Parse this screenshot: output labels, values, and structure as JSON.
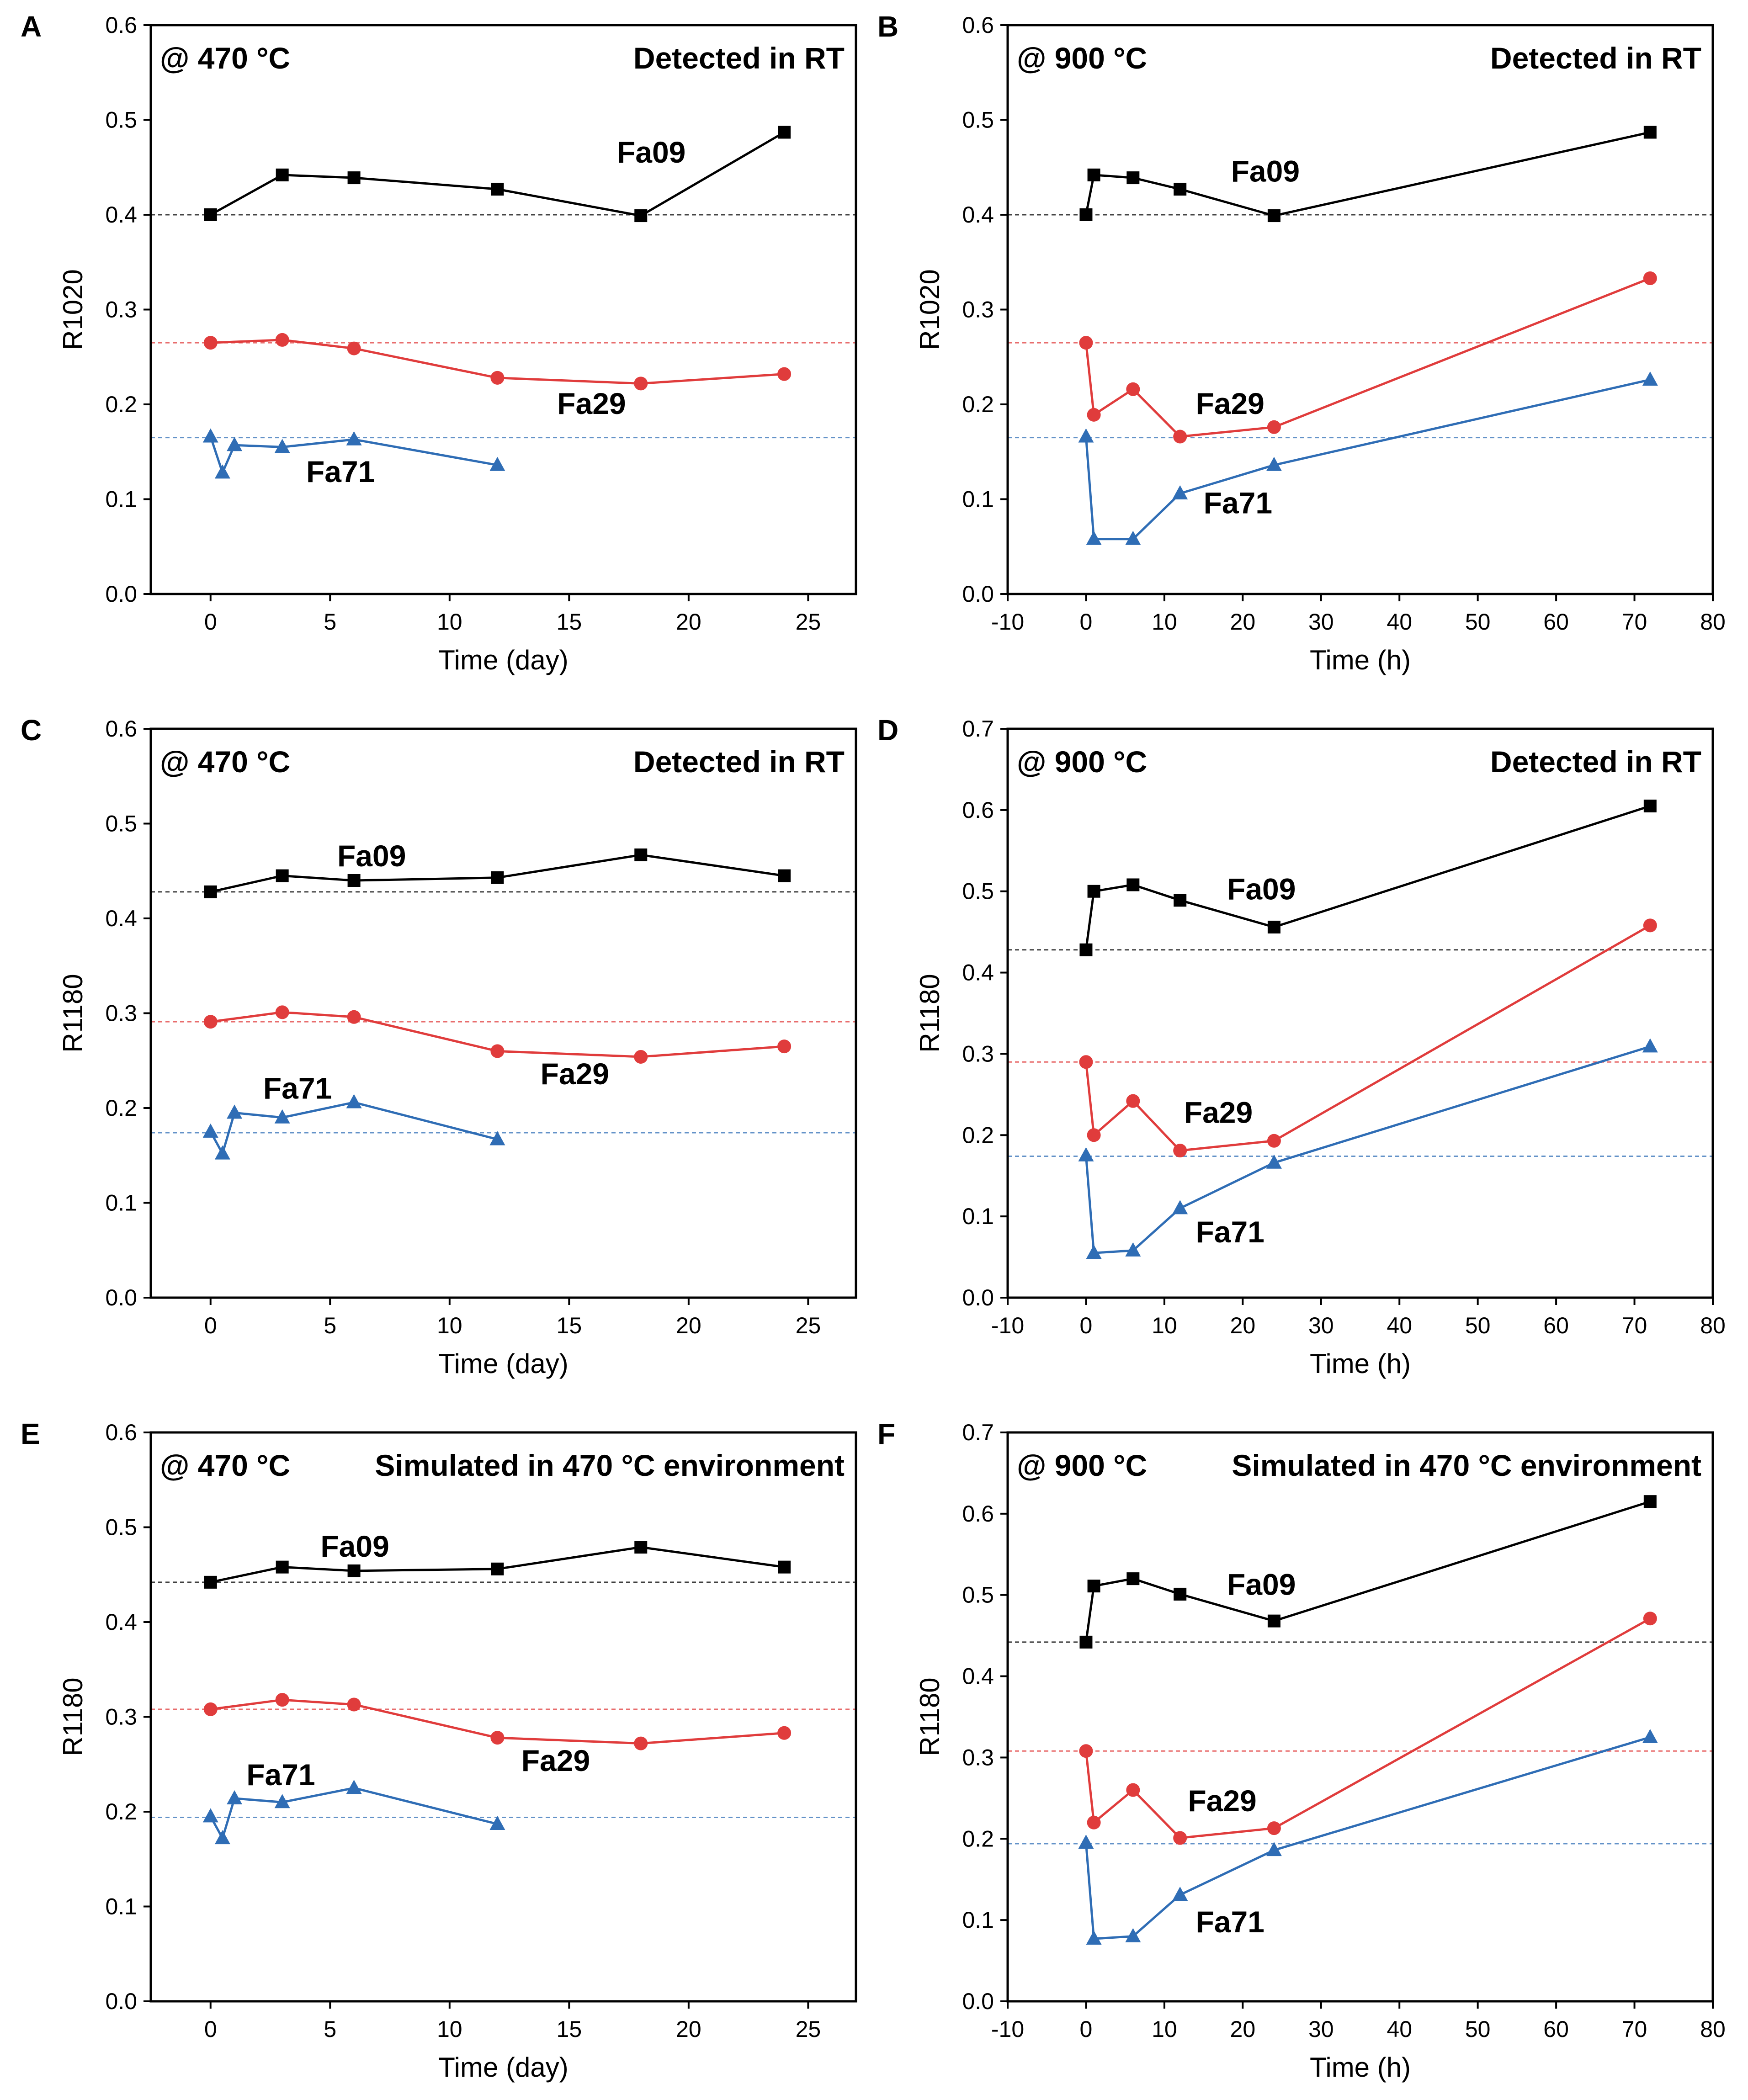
{
  "colors": {
    "black": "#000000",
    "red": "#e03c3c",
    "blue": "#2f6db5"
  },
  "chart_data": [
    {
      "id": "A",
      "type": "line",
      "letter": "A",
      "annotation_left": "@ 470 °C",
      "annotation_right": "Detected in RT",
      "xlabel": "Time (day)",
      "ylabel": "R1020",
      "xlim": [
        -2.5,
        27
      ],
      "ylim": [
        0,
        0.6
      ],
      "xticks": [
        0,
        5,
        10,
        15,
        20,
        25
      ],
      "xtick_labels": [
        "0",
        "5",
        "10",
        "15",
        "20",
        "25"
      ],
      "yticks": [
        0,
        0.1,
        0.2,
        0.3,
        0.4,
        0.5,
        0.6
      ],
      "ytick_labels": [
        "0.0",
        "0.1",
        "0.2",
        "0.3",
        "0.4",
        "0.5",
        "0.6"
      ],
      "series": [
        {
          "name": "Fa09",
          "color": "#000000",
          "marker": "square",
          "reference": 0.4,
          "x": [
            0,
            3,
            6,
            12,
            18,
            24
          ],
          "y": [
            0.4,
            0.442,
            0.439,
            0.427,
            0.399,
            0.487
          ],
          "label_at": [
            17.0,
            0.455
          ]
        },
        {
          "name": "Fa29",
          "color": "#e03c3c",
          "marker": "circle",
          "reference": 0.265,
          "x": [
            0,
            3,
            6,
            12,
            18,
            24
          ],
          "y": [
            0.265,
            0.268,
            0.259,
            0.228,
            0.222,
            0.232
          ],
          "label_at": [
            14.5,
            0.19
          ]
        },
        {
          "name": "Fa71",
          "color": "#2f6db5",
          "marker": "triangle",
          "reference": 0.165,
          "x": [
            0,
            0.5,
            1,
            3,
            6,
            12
          ],
          "y": [
            0.166,
            0.128,
            0.157,
            0.155,
            0.163,
            0.136
          ],
          "label_at": [
            4.0,
            0.118
          ]
        }
      ]
    },
    {
      "id": "B",
      "type": "line",
      "letter": "B",
      "annotation_left": "@ 900 °C",
      "annotation_right": "Detected in RT",
      "xlabel": "Time (h)",
      "ylabel": "R1020",
      "xlim": [
        -10,
        80
      ],
      "ylim": [
        0,
        0.6
      ],
      "xticks": [
        -10,
        0,
        10,
        20,
        30,
        40,
        50,
        60,
        70,
        80
      ],
      "xtick_labels": [
        "-10",
        "0",
        "10",
        "20",
        "30",
        "40",
        "50",
        "60",
        "70",
        "80"
      ],
      "yticks": [
        0,
        0.1,
        0.2,
        0.3,
        0.4,
        0.5,
        0.6
      ],
      "ytick_labels": [
        "0.0",
        "0.1",
        "0.2",
        "0.3",
        "0.4",
        "0.5",
        "0.6"
      ],
      "series": [
        {
          "name": "Fa09",
          "color": "#000000",
          "marker": "square",
          "reference": 0.4,
          "x": [
            0,
            1,
            6,
            12,
            24,
            72
          ],
          "y": [
            0.4,
            0.442,
            0.439,
            0.427,
            0.399,
            0.487
          ],
          "label_at": [
            18.5,
            0.435
          ]
        },
        {
          "name": "Fa29",
          "color": "#e03c3c",
          "marker": "circle",
          "reference": 0.265,
          "x": [
            0,
            1,
            6,
            12,
            24,
            72
          ],
          "y": [
            0.265,
            0.189,
            0.216,
            0.166,
            0.176,
            0.333
          ],
          "label_at": [
            14.0,
            0.19
          ]
        },
        {
          "name": "Fa71",
          "color": "#2f6db5",
          "marker": "triangle",
          "reference": 0.165,
          "x": [
            0,
            1,
            6,
            12,
            24,
            72
          ],
          "y": [
            0.166,
            0.058,
            0.058,
            0.106,
            0.136,
            0.226
          ],
          "label_at": [
            15.0,
            0.085
          ]
        }
      ]
    },
    {
      "id": "C",
      "type": "line",
      "letter": "C",
      "annotation_left": "@ 470 °C",
      "annotation_right": "Detected in RT",
      "xlabel": "Time (day)",
      "ylabel": "R1180",
      "xlim": [
        -2.5,
        27
      ],
      "ylim": [
        0,
        0.6
      ],
      "xticks": [
        0,
        5,
        10,
        15,
        20,
        25
      ],
      "xtick_labels": [
        "0",
        "5",
        "10",
        "15",
        "20",
        "25"
      ],
      "yticks": [
        0,
        0.1,
        0.2,
        0.3,
        0.4,
        0.5,
        0.6
      ],
      "ytick_labels": [
        "0.0",
        "0.1",
        "0.2",
        "0.3",
        "0.4",
        "0.5",
        "0.6"
      ],
      "series": [
        {
          "name": "Fa09",
          "color": "#000000",
          "marker": "square",
          "reference": 0.428,
          "x": [
            0,
            3,
            6,
            12,
            18,
            24
          ],
          "y": [
            0.428,
            0.445,
            0.44,
            0.443,
            0.467,
            0.445
          ],
          "label_at": [
            5.3,
            0.455
          ]
        },
        {
          "name": "Fa29",
          "color": "#e03c3c",
          "marker": "circle",
          "reference": 0.291,
          "x": [
            0,
            3,
            6,
            12,
            18,
            24
          ],
          "y": [
            0.291,
            0.301,
            0.296,
            0.26,
            0.254,
            0.265
          ],
          "label_at": [
            13.8,
            0.225
          ]
        },
        {
          "name": "Fa71",
          "color": "#2f6db5",
          "marker": "triangle",
          "reference": 0.174,
          "x": [
            0,
            0.5,
            1,
            3,
            6,
            12
          ],
          "y": [
            0.175,
            0.152,
            0.195,
            0.19,
            0.206,
            0.167
          ],
          "label_at": [
            2.2,
            0.21
          ]
        }
      ]
    },
    {
      "id": "D",
      "type": "line",
      "letter": "D",
      "annotation_left": "@ 900 °C",
      "annotation_right": "Detected in RT",
      "xlabel": "Time (h)",
      "ylabel": "R1180",
      "xlim": [
        -10,
        80
      ],
      "ylim": [
        0,
        0.7
      ],
      "xticks": [
        -10,
        0,
        10,
        20,
        30,
        40,
        50,
        60,
        70,
        80
      ],
      "xtick_labels": [
        "-10",
        "0",
        "10",
        "20",
        "30",
        "40",
        "50",
        "60",
        "70",
        "80"
      ],
      "yticks": [
        0,
        0.1,
        0.2,
        0.3,
        0.4,
        0.5,
        0.6,
        0.7
      ],
      "ytick_labels": [
        "0.0",
        "0.1",
        "0.2",
        "0.3",
        "0.4",
        "0.5",
        "0.6",
        "0.7"
      ],
      "series": [
        {
          "name": "Fa09",
          "color": "#000000",
          "marker": "square",
          "reference": 0.428,
          "x": [
            0,
            1,
            6,
            12,
            24,
            72
          ],
          "y": [
            0.428,
            0.5,
            0.508,
            0.489,
            0.456,
            0.605
          ],
          "label_at": [
            18.0,
            0.49
          ]
        },
        {
          "name": "Fa29",
          "color": "#e03c3c",
          "marker": "circle",
          "reference": 0.29,
          "x": [
            0,
            1,
            6,
            12,
            24,
            72
          ],
          "y": [
            0.29,
            0.2,
            0.242,
            0.181,
            0.193,
            0.458
          ],
          "label_at": [
            12.5,
            0.215
          ]
        },
        {
          "name": "Fa71",
          "color": "#2f6db5",
          "marker": "triangle",
          "reference": 0.174,
          "x": [
            0,
            1,
            6,
            12,
            24,
            72
          ],
          "y": [
            0.175,
            0.055,
            0.058,
            0.11,
            0.166,
            0.309
          ],
          "label_at": [
            14.0,
            0.068
          ]
        }
      ]
    },
    {
      "id": "E",
      "type": "line",
      "letter": "E",
      "annotation_left": "@ 470 °C",
      "annotation_right": "Simulated in 470 °C environment",
      "xlabel": "Time (day)",
      "ylabel": "R1180",
      "xlim": [
        -2.5,
        27
      ],
      "ylim": [
        0,
        0.6
      ],
      "xticks": [
        0,
        5,
        10,
        15,
        20,
        25
      ],
      "xtick_labels": [
        "0",
        "5",
        "10",
        "15",
        "20",
        "25"
      ],
      "yticks": [
        0,
        0.1,
        0.2,
        0.3,
        0.4,
        0.5,
        0.6
      ],
      "ytick_labels": [
        "0.0",
        "0.1",
        "0.2",
        "0.3",
        "0.4",
        "0.5",
        "0.6"
      ],
      "series": [
        {
          "name": "Fa09",
          "color": "#000000",
          "marker": "square",
          "reference": 0.442,
          "x": [
            0,
            3,
            6,
            12,
            18,
            24
          ],
          "y": [
            0.442,
            0.458,
            0.454,
            0.456,
            0.479,
            0.458
          ],
          "label_at": [
            4.6,
            0.469
          ]
        },
        {
          "name": "Fa29",
          "color": "#e03c3c",
          "marker": "circle",
          "reference": 0.308,
          "x": [
            0,
            3,
            6,
            12,
            18,
            24
          ],
          "y": [
            0.308,
            0.318,
            0.313,
            0.278,
            0.272,
            0.283
          ],
          "label_at": [
            13.0,
            0.243
          ]
        },
        {
          "name": "Fa71",
          "color": "#2f6db5",
          "marker": "triangle",
          "reference": 0.194,
          "x": [
            0,
            0.5,
            1,
            3,
            6,
            12
          ],
          "y": [
            0.195,
            0.172,
            0.214,
            0.21,
            0.225,
            0.187
          ],
          "label_at": [
            1.5,
            0.228
          ]
        }
      ]
    },
    {
      "id": "F",
      "type": "line",
      "letter": "F",
      "annotation_left": "@ 900 °C",
      "annotation_right": "Simulated in 470 °C environment",
      "xlabel": "Time (h)",
      "ylabel": "R1180",
      "xlim": [
        -10,
        80
      ],
      "ylim": [
        0,
        0.7
      ],
      "xticks": [
        -10,
        0,
        10,
        20,
        30,
        40,
        50,
        60,
        70,
        80
      ],
      "xtick_labels": [
        "-10",
        "0",
        "10",
        "20",
        "30",
        "40",
        "50",
        "60",
        "70",
        "80"
      ],
      "yticks": [
        0,
        0.1,
        0.2,
        0.3,
        0.4,
        0.5,
        0.6,
        0.7
      ],
      "ytick_labels": [
        "0.0",
        "0.1",
        "0.2",
        "0.3",
        "0.4",
        "0.5",
        "0.6",
        "0.7"
      ],
      "series": [
        {
          "name": "Fa09",
          "color": "#000000",
          "marker": "square",
          "reference": 0.442,
          "x": [
            0,
            1,
            6,
            12,
            24,
            72
          ],
          "y": [
            0.442,
            0.511,
            0.52,
            0.501,
            0.468,
            0.615
          ],
          "label_at": [
            18.0,
            0.5
          ]
        },
        {
          "name": "Fa29",
          "color": "#e03c3c",
          "marker": "circle",
          "reference": 0.308,
          "x": [
            0,
            1,
            6,
            12,
            24,
            72
          ],
          "y": [
            0.308,
            0.22,
            0.26,
            0.201,
            0.213,
            0.471
          ],
          "label_at": [
            13.0,
            0.234
          ]
        },
        {
          "name": "Fa71",
          "color": "#2f6db5",
          "marker": "triangle",
          "reference": 0.194,
          "x": [
            0,
            1,
            6,
            12,
            24,
            72
          ],
          "y": [
            0.195,
            0.077,
            0.08,
            0.131,
            0.186,
            0.325
          ],
          "label_at": [
            14.0,
            0.085
          ]
        }
      ]
    }
  ]
}
